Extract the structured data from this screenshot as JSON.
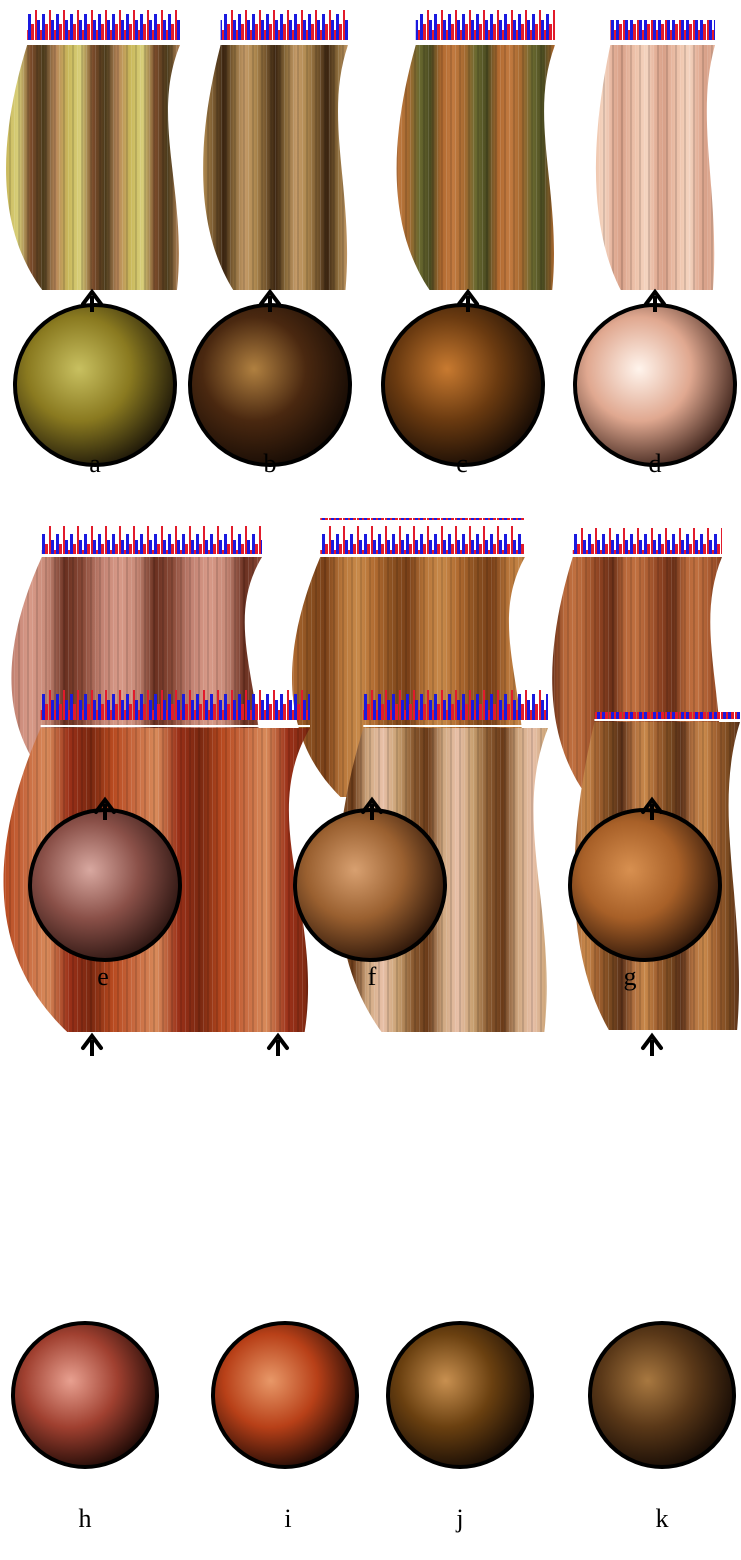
{
  "panels": [
    {
      "label": "a"
    },
    {
      "label": "b"
    },
    {
      "label": "c"
    },
    {
      "label": "d"
    },
    {
      "label": "e"
    },
    {
      "label": "f"
    },
    {
      "label": "g"
    },
    {
      "label": "h"
    },
    {
      "label": "i"
    },
    {
      "label": "j"
    },
    {
      "label": "k"
    }
  ]
}
